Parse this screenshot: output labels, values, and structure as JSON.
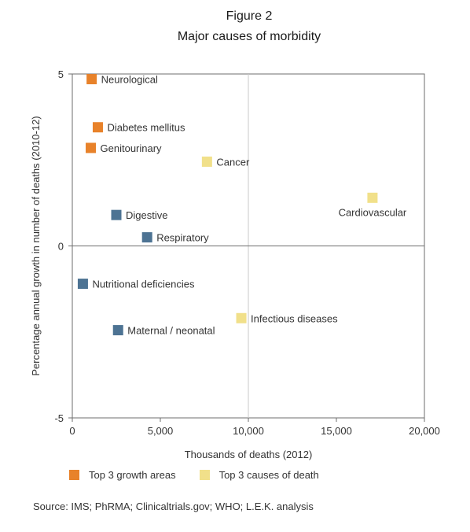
{
  "figure": {
    "label": "Figure 2",
    "title": "Major causes of morbidity",
    "source": "Source: IMS; PhRMA; Clinicaltrials.gov; WHO; L.E.K. analysis"
  },
  "legend": [
    {
      "name": "Top 3 growth areas",
      "color": "#e8822a"
    },
    {
      "name": "Top 3 causes of death",
      "color": "#f1e08a"
    }
  ],
  "chart_data": {
    "type": "scatter",
    "xlabel": "Thousands of deaths (2012)",
    "ylabel": "Percentage annual growth in number of deaths (2010-12)",
    "xlim": [
      0,
      20000
    ],
    "ylim": [
      -5,
      5
    ],
    "xticks": [
      0,
      5000,
      10000,
      15000,
      20000
    ],
    "xtick_labels": [
      "0",
      "5,000",
      "10,000",
      "15,000",
      "20,000"
    ],
    "yticks": [
      -5,
      0,
      5
    ],
    "ytick_labels": [
      "-5",
      "0",
      "5"
    ],
    "reference_lines": {
      "x": 10000,
      "y": 0
    },
    "grid": false,
    "legend_position": "bottom",
    "colors": {
      "growth": "#e8822a",
      "death": "#f1e08a",
      "other": "#4d7393"
    },
    "points": [
      {
        "label": "Neurological",
        "x": 1100,
        "y": 4.85,
        "group": "growth",
        "label_side": "right"
      },
      {
        "label": "Diabetes mellitus",
        "x": 1450,
        "y": 3.45,
        "group": "growth",
        "label_side": "right"
      },
      {
        "label": "Genitourinary",
        "x": 1050,
        "y": 2.85,
        "group": "growth",
        "label_side": "right"
      },
      {
        "label": "Cancer",
        "x": 7650,
        "y": 2.45,
        "group": "death",
        "label_side": "right"
      },
      {
        "label": "Cardiovascular",
        "x": 17050,
        "y": 1.4,
        "group": "death",
        "label_side": "below"
      },
      {
        "label": "Digestive",
        "x": 2500,
        "y": 0.9,
        "group": "other",
        "label_side": "right"
      },
      {
        "label": "Respiratory",
        "x": 4250,
        "y": 0.25,
        "group": "other",
        "label_side": "right"
      },
      {
        "label": "Nutritional deficiencies",
        "x": 600,
        "y": -1.1,
        "group": "other",
        "label_side": "right"
      },
      {
        "label": "Infectious diseases",
        "x": 9600,
        "y": -2.1,
        "group": "death",
        "label_side": "right"
      },
      {
        "label": "Maternal / neonatal",
        "x": 2600,
        "y": -2.45,
        "group": "other",
        "label_side": "right"
      }
    ]
  }
}
